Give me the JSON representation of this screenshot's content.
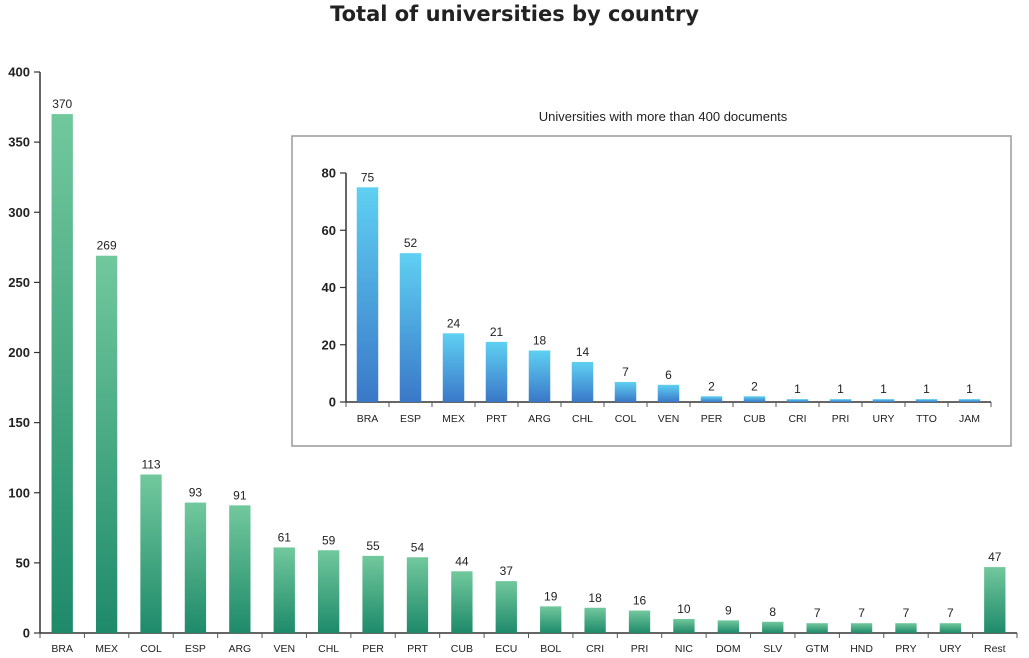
{
  "chart_data": [
    {
      "type": "bar",
      "title": "Total of universities by country",
      "categories": [
        "BRA",
        "MEX",
        "COL",
        "ESP",
        "ARG",
        "VEN",
        "CHL",
        "PER",
        "PRT",
        "CUB",
        "ECU",
        "BOL",
        "CRI",
        "PRI",
        "NIC",
        "DOM",
        "SLV",
        "GTM",
        "HND",
        "PRY",
        "URY",
        "Rest"
      ],
      "values": [
        370,
        269,
        113,
        93,
        91,
        61,
        59,
        55,
        54,
        44,
        37,
        19,
        18,
        16,
        10,
        9,
        8,
        7,
        7,
        7,
        7,
        47
      ],
      "yticks": [
        0,
        50,
        100,
        150,
        200,
        250,
        300,
        350,
        400
      ],
      "ylim": [
        0,
        400
      ],
      "color_top": "#72c89d",
      "color_bottom": "#1e8a6a",
      "grid": false
    },
    {
      "type": "bar",
      "title": "Universities with more than 400 documents",
      "categories": [
        "BRA",
        "ESP",
        "MEX",
        "PRT",
        "ARG",
        "CHL",
        "COL",
        "VEN",
        "PER",
        "CUB",
        "CRI",
        "PRI",
        "URY",
        "TTO",
        "JAM"
      ],
      "values": [
        75,
        52,
        24,
        21,
        18,
        14,
        7,
        6,
        2,
        2,
        1,
        1,
        1,
        1,
        1
      ],
      "yticks": [
        0,
        20,
        40,
        60,
        80
      ],
      "ylim": [
        0,
        80
      ],
      "color_top": "#5fd0f2",
      "color_bottom": "#3a78c8",
      "grid": false
    }
  ]
}
